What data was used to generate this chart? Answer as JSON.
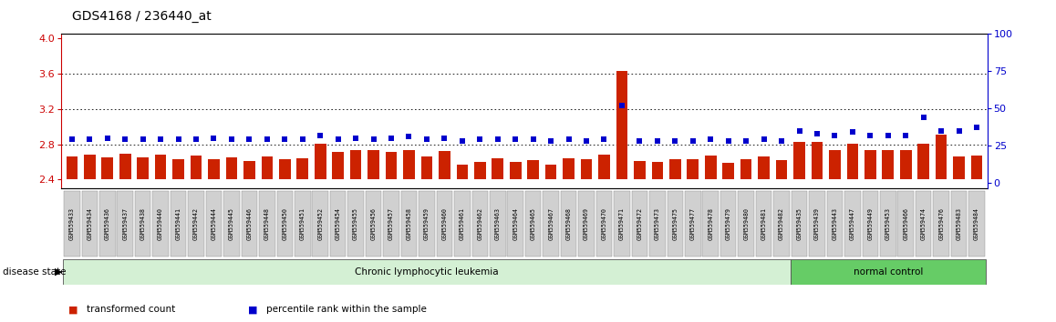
{
  "title": "GDS4168 / 236440_at",
  "ylim_left": [
    2.3,
    4.05
  ],
  "ylim_right": [
    -3.75,
    100
  ],
  "yticks_left": [
    2.4,
    2.8,
    3.2,
    3.6,
    4.0
  ],
  "yticks_right": [
    0,
    25,
    50,
    75,
    100
  ],
  "left_tick_color": "#cc0000",
  "right_tick_color": "#0000cc",
  "bar_color": "#cc2200",
  "dot_color": "#0000cc",
  "sample_ids": [
    "GSM559433",
    "GSM559434",
    "GSM559436",
    "GSM559437",
    "GSM559438",
    "GSM559440",
    "GSM559441",
    "GSM559442",
    "GSM559444",
    "GSM559445",
    "GSM559446",
    "GSM559448",
    "GSM559450",
    "GSM559451",
    "GSM559452",
    "GSM559454",
    "GSM559455",
    "GSM559456",
    "GSM559457",
    "GSM559458",
    "GSM559459",
    "GSM559460",
    "GSM559461",
    "GSM559462",
    "GSM559463",
    "GSM559464",
    "GSM559465",
    "GSM559467",
    "GSM559468",
    "GSM559469",
    "GSM559470",
    "GSM559471",
    "GSM559472",
    "GSM559473",
    "GSM559475",
    "GSM559477",
    "GSM559478",
    "GSM559479",
    "GSM559480",
    "GSM559481",
    "GSM559482",
    "GSM559435",
    "GSM559439",
    "GSM559443",
    "GSM559447",
    "GSM559449",
    "GSM559453",
    "GSM559466",
    "GSM559474",
    "GSM559476",
    "GSM559483",
    "GSM559484"
  ],
  "transformed_counts": [
    2.66,
    2.68,
    2.65,
    2.69,
    2.65,
    2.68,
    2.63,
    2.67,
    2.63,
    2.65,
    2.61,
    2.66,
    2.63,
    2.64,
    2.81,
    2.71,
    2.73,
    2.73,
    2.71,
    2.73,
    2.66,
    2.72,
    2.57,
    2.6,
    2.64,
    2.6,
    2.62,
    2.57,
    2.64,
    2.63,
    2.68,
    3.63,
    2.61,
    2.6,
    2.63,
    2.63,
    2.67,
    2.59,
    2.63,
    2.66,
    2.62,
    2.83,
    2.83,
    2.73,
    2.81,
    2.73,
    2.73,
    2.73,
    2.81,
    2.91,
    2.66,
    2.67
  ],
  "percentile_ranks": [
    29,
    29,
    30,
    29,
    29,
    29,
    29,
    29,
    30,
    29,
    29,
    29,
    29,
    29,
    32,
    29,
    30,
    29,
    30,
    31,
    29,
    30,
    28,
    29,
    29,
    29,
    29,
    28,
    29,
    28,
    29,
    52,
    28,
    28,
    28,
    28,
    29,
    28,
    28,
    29,
    28,
    35,
    33,
    32,
    34,
    32,
    32,
    32,
    44,
    35,
    35,
    37
  ],
  "disease_groups": [
    {
      "label": "Chronic lymphocytic leukemia",
      "start": 0,
      "end": 41,
      "color": "#d4f0d4"
    },
    {
      "label": "normal control",
      "start": 41,
      "end": 52,
      "color": "#66cc66"
    }
  ],
  "legend_items": [
    {
      "color": "#cc2200",
      "label": "transformed count"
    },
    {
      "color": "#0000cc",
      "label": "percentile rank within the sample"
    }
  ],
  "disease_state_label": "disease state",
  "background_color": "#ffffff",
  "label_bg_color": "#d0d0d0",
  "font_size_title": 10,
  "font_size_tick": 7,
  "font_size_label": 7.5
}
